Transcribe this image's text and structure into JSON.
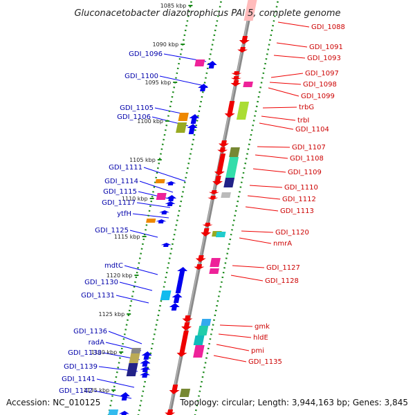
{
  "title": "Gluconacetobacter diazotrophicus PAl 5, complete genome",
  "footer": {
    "accession": "Accession: NC_010125",
    "topology": "Topology: circular; Length: 3,944,163 bp; Genes: 3,845"
  },
  "colors": {
    "forward": "#ee0000",
    "reverse": "#0000ee",
    "backbone": "#8a8a8a",
    "dots": "#1a8a1a"
  },
  "scale_labels": [
    "1085 kbp",
    "1090 kbp",
    "1095 kbp",
    "1100 kbp",
    "1105 kbp",
    "1110 kbp",
    "1115 kbp",
    "1120 kbp",
    "1125 kbp",
    "1130 kbp",
    "1135 kbp"
  ],
  "labels_right": [
    "GDI_1088",
    "GDI_1091",
    "GDI_1093",
    "GDI_1097",
    "GDI_1098",
    "GDI_1099",
    "trbG",
    "trbI",
    "GDI_1104",
    "GDI_1107",
    "GDI_1108",
    "GDI_1109",
    "GDI_1110",
    "GDI_1112",
    "GDI_1113",
    "GDI_1120",
    "nmrA",
    "GDI_1127",
    "GDI_1128",
    "gmk",
    "hldE",
    "pmi",
    "GDI_1135"
  ],
  "labels_left": [
    "GDI_1096",
    "GDI_1100",
    "GDI_1105",
    "GDI_1106",
    "GDI_1111",
    "GDI_1114",
    "GDI_1115",
    "GDI_1117",
    "ytfH",
    "GDI_1125",
    "mdtC",
    "GDI_1130",
    "GDI_1131",
    "GDI_1136",
    "radA",
    "GDI_1138",
    "GDI_1139",
    "GDI_1141",
    "GDI_1142"
  ]
}
